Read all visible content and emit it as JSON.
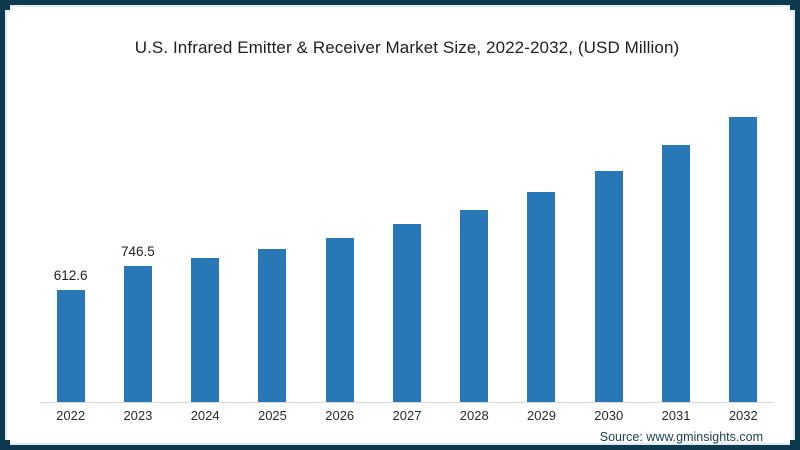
{
  "footer": {
    "source": "Source: www.gminsights.com"
  },
  "colors": {
    "bar": "#2878b8",
    "frame_outer": "#0e3a50",
    "frame_inner_line": "#dcecf6",
    "axis_line": "#d9d9d9",
    "title_text": "#202020",
    "axis_label_text": "#2b2b2b",
    "value_label_text": "#1c1c1c",
    "source_text": "#1d3e53"
  },
  "chart_data": {
    "type": "bar",
    "title": "U.S. Infrared Emitter & Receiver Market Size, 2022-2032, (USD Million)",
    "categories": [
      "2022",
      "2023",
      "2024",
      "2025",
      "2026",
      "2027",
      "2028",
      "2029",
      "2030",
      "2031",
      "2032"
    ],
    "values": [
      612.6,
      746.5,
      790,
      840,
      900,
      975,
      1050,
      1150,
      1265,
      1410,
      1560
    ],
    "data_labels": [
      "612.6",
      "746.5",
      "",
      "",
      "",
      "",
      "",
      "",
      "",
      "",
      ""
    ],
    "xlabel": "",
    "ylabel": "",
    "ylim": [
      0,
      1600
    ],
    "grid": false,
    "legend": false,
    "bar_color": "#2878b8"
  }
}
